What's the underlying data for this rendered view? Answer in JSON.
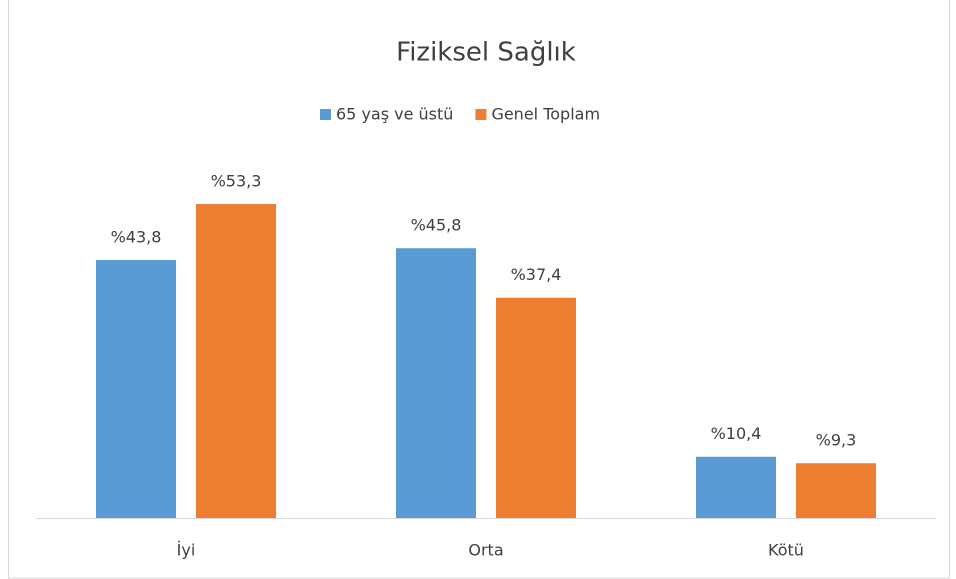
{
  "chart_data": {
    "type": "bar",
    "title": "Fiziksel Sağlık",
    "categories": [
      "İyi",
      "Orta",
      "Kötü"
    ],
    "series": [
      {
        "name": "65 yaş ve üstü",
        "color": "#5b9bd5",
        "values": [
          43.8,
          45.8,
          10.4
        ],
        "value_labels": [
          "%43,8",
          "%45,8",
          "%10,4"
        ]
      },
      {
        "name": "Genel Toplam",
        "color": "#ed7d31",
        "values": [
          53.3,
          37.4,
          9.3
        ],
        "value_labels": [
          "%53,3",
          "%37,4",
          "%9,3"
        ]
      }
    ],
    "legend": "top"
  }
}
